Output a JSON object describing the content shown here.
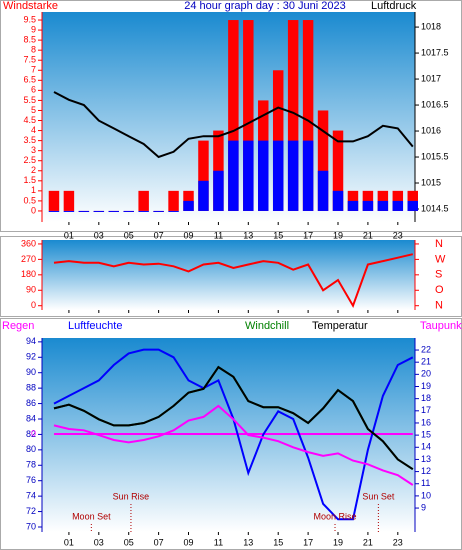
{
  "chart_data": [
    {
      "type": "bar-line",
      "title": "24 hour graph day : 30 Juni 2023",
      "y_label": "Windstarke",
      "y2_label": "Luftdruck",
      "x": [
        0,
        1,
        2,
        3,
        4,
        5,
        6,
        7,
        8,
        9,
        10,
        11,
        12,
        13,
        14,
        15,
        16,
        17,
        18,
        19,
        20,
        21,
        22,
        23,
        24
      ],
      "xlim": [
        -0.8,
        24.15
      ],
      "xticks": [
        {
          "value": 1,
          "label": "01"
        },
        {
          "value": 3,
          "label": "03"
        },
        {
          "value": 5,
          "label": "05"
        },
        {
          "value": 7,
          "label": "07"
        },
        {
          "value": 9,
          "label": "09"
        },
        {
          "value": 11,
          "label": "11"
        },
        {
          "value": 13,
          "label": "13"
        },
        {
          "value": 15,
          "label": "15"
        },
        {
          "value": 17,
          "label": "17"
        },
        {
          "value": 19,
          "label": "19"
        },
        {
          "value": 21,
          "label": "21"
        },
        {
          "value": 23,
          "label": "23"
        }
      ],
      "ylim": [
        -0.55,
        9.9
      ],
      "yticks": [
        0,
        0.5,
        1,
        1.5,
        2,
        2.5,
        3,
        3.5,
        4,
        4.5,
        5,
        5.5,
        6,
        6.5,
        7,
        7.5,
        8,
        8.5,
        9,
        9.5
      ],
      "y2lim": [
        1014.25,
        1018.29
      ],
      "y2ticks": [
        1014.5,
        1015,
        1015.5,
        1016,
        1016.5,
        1017,
        1017.5,
        1018
      ],
      "series": [
        {
          "color": "#ff0000",
          "style": "bar",
          "values": [
            1,
            1,
            0,
            0,
            0,
            0,
            1,
            0,
            1,
            1,
            3.5,
            4,
            9.5,
            9.5,
            5.5,
            7,
            9.5,
            9.5,
            5,
            4,
            1,
            1,
            1,
            1,
            1
          ]
        },
        {
          "color": "#0000ff",
          "style": "bar",
          "values": [
            0,
            0,
            0,
            0,
            0,
            0,
            0,
            0,
            0,
            0.5,
            1.5,
            2,
            3.5,
            3.5,
            3.5,
            3.5,
            3.5,
            3.5,
            2,
            1,
            0.5,
            0.5,
            0.5,
            0.5,
            0.5
          ]
        },
        {
          "color": "#000000",
          "style": "line",
          "axis": "y2",
          "values": [
            1016.75,
            1016.6,
            1016.5,
            1016.2,
            1016.05,
            1015.9,
            1015.75,
            1015.5,
            1015.6,
            1015.85,
            1015.9,
            1015.9,
            1016.0,
            1016.15,
            1016.3,
            1016.45,
            1016.35,
            1016.2,
            1016.0,
            1015.8,
            1015.8,
            1015.9,
            1016.1,
            1016.05,
            1015.7
          ]
        }
      ]
    },
    {
      "type": "line",
      "x": [
        0,
        1,
        2,
        3,
        4,
        5,
        6,
        7,
        8,
        9,
        10,
        11,
        12,
        13,
        14,
        15,
        16,
        17,
        18,
        19,
        20,
        21,
        22,
        23,
        24
      ],
      "xlim": [
        -0.8,
        24.15
      ],
      "ylim": [
        -25,
        383
      ],
      "yticks": [
        0,
        90,
        180,
        270,
        360
      ],
      "y2ticks": [
        {
          "value": 360,
          "label": "N"
        },
        {
          "value": 270,
          "label": "W"
        },
        {
          "value": 180,
          "label": "S"
        },
        {
          "value": 90,
          "label": "O"
        },
        {
          "value": 0,
          "label": "N"
        }
      ],
      "series": [
        {
          "color": "#ff0000",
          "values": [
            250,
            260,
            250,
            250,
            230,
            250,
            240,
            245,
            230,
            200,
            240,
            250,
            220,
            240,
            260,
            250,
            210,
            240,
            90,
            150,
            0,
            240,
            260,
            280,
            300
          ]
        }
      ]
    },
    {
      "type": "line",
      "x": [
        0,
        1,
        2,
        3,
        4,
        5,
        6,
        7,
        8,
        9,
        10,
        11,
        12,
        13,
        14,
        15,
        16,
        17,
        18,
        19,
        20,
        21,
        22,
        23,
        24
      ],
      "xlim": [
        -0.8,
        24.15
      ],
      "xticks": [
        {
          "value": 1,
          "label": "01"
        },
        {
          "value": 3,
          "label": "03"
        },
        {
          "value": 5,
          "label": "05"
        },
        {
          "value": 7,
          "label": "07"
        },
        {
          "value": 9,
          "label": "09"
        },
        {
          "value": 11,
          "label": "11"
        },
        {
          "value": 13,
          "label": "13"
        },
        {
          "value": 15,
          "label": "15"
        },
        {
          "value": 17,
          "label": "17"
        },
        {
          "value": 19,
          "label": "19"
        },
        {
          "value": 21,
          "label": "21"
        },
        {
          "value": 23,
          "label": "23"
        }
      ],
      "ylim": [
        69.35,
        94.5
      ],
      "yticks": [
        70,
        72,
        74,
        76,
        78,
        80,
        82,
        84,
        86,
        88,
        90,
        92,
        94
      ],
      "y2lim": [
        7.03,
        22.99
      ],
      "y2ticks": [
        9,
        10,
        11,
        12,
        13,
        14,
        15,
        16,
        17,
        18,
        19,
        20,
        21,
        22
      ],
      "y3ticks": [
        0
      ],
      "series": [
        {
          "name": "Regen",
          "color": "#ff00ff",
          "axis": "y3",
          "values": [
            0,
            0,
            0,
            0,
            0,
            0,
            0,
            0,
            0,
            0,
            0,
            0,
            0,
            0,
            0,
            0,
            0,
            0,
            0,
            0,
            0,
            0,
            0,
            0,
            0
          ]
        },
        {
          "name": "Luftfeuchte",
          "color": "#0000ff",
          "values": [
            86,
            87,
            88,
            89,
            91,
            92.5,
            93,
            93,
            92,
            89,
            88,
            89,
            84,
            77,
            82,
            85,
            84,
            79,
            73,
            71,
            71,
            80,
            87,
            91,
            92
          ]
        },
        {
          "name": "Windchill",
          "color": "#008000",
          "axis": "y2",
          "values": [
            17.2,
            17.5,
            17,
            16.3,
            15.8,
            15.8,
            16.0,
            16.5,
            17.4,
            18.5,
            18.8,
            20.6,
            19.8,
            17.8,
            17.3,
            17.3,
            16.8,
            16.0,
            17.2,
            18.7,
            17.8,
            15.5,
            14.5,
            13.0,
            12.2
          ]
        },
        {
          "name": "Temperatur",
          "color": "#000000",
          "axis": "y2",
          "values": [
            17.2,
            17.5,
            17,
            16.3,
            15.8,
            15.8,
            16.0,
            16.5,
            17.4,
            18.5,
            18.8,
            20.6,
            19.8,
            17.8,
            17.3,
            17.3,
            16.8,
            16.0,
            17.2,
            18.7,
            17.8,
            15.5,
            14.5,
            13.0,
            12.2
          ]
        },
        {
          "name": "Taupunkt",
          "color": "#ff00ff",
          "axis": "y2",
          "values": [
            15.8,
            15.5,
            15.4,
            15,
            14.6,
            14.4,
            14.6,
            14.9,
            15.4,
            16.2,
            16.5,
            17.4,
            16.3,
            15.0,
            14.8,
            14.5,
            14.0,
            13.6,
            13.3,
            13.5,
            12.9,
            12.6,
            12.1,
            11.7,
            10.9
          ]
        }
      ],
      "annotations": [
        {
          "label": "Sun Rise",
          "x": 5.15
        },
        {
          "label": "Sun Set",
          "x": 21.7
        },
        {
          "label": "Moon Set",
          "x": 2.5
        },
        {
          "label": "Moon Rise",
          "x": 18.8
        }
      ]
    }
  ]
}
